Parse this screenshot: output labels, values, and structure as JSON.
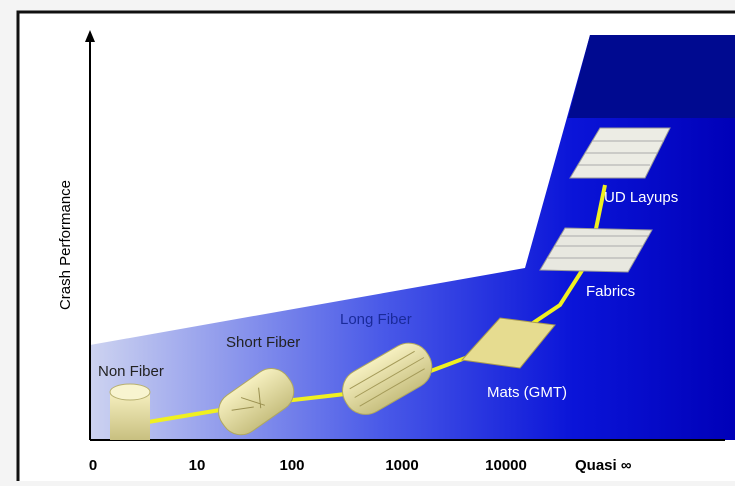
{
  "y_axis": {
    "label": "Crash Performance"
  },
  "x_axis": {
    "labels": [
      "0",
      "10",
      "100",
      "1000",
      "10000",
      "Quasi ∞"
    ]
  },
  "nodes": [
    {
      "label": "Non Fiber"
    },
    {
      "label": "Short Fiber"
    },
    {
      "label": "Long Fiber"
    },
    {
      "label": "Mats (GMT)"
    },
    {
      "label": "Fabrics"
    },
    {
      "label": "UD Layups"
    }
  ]
}
